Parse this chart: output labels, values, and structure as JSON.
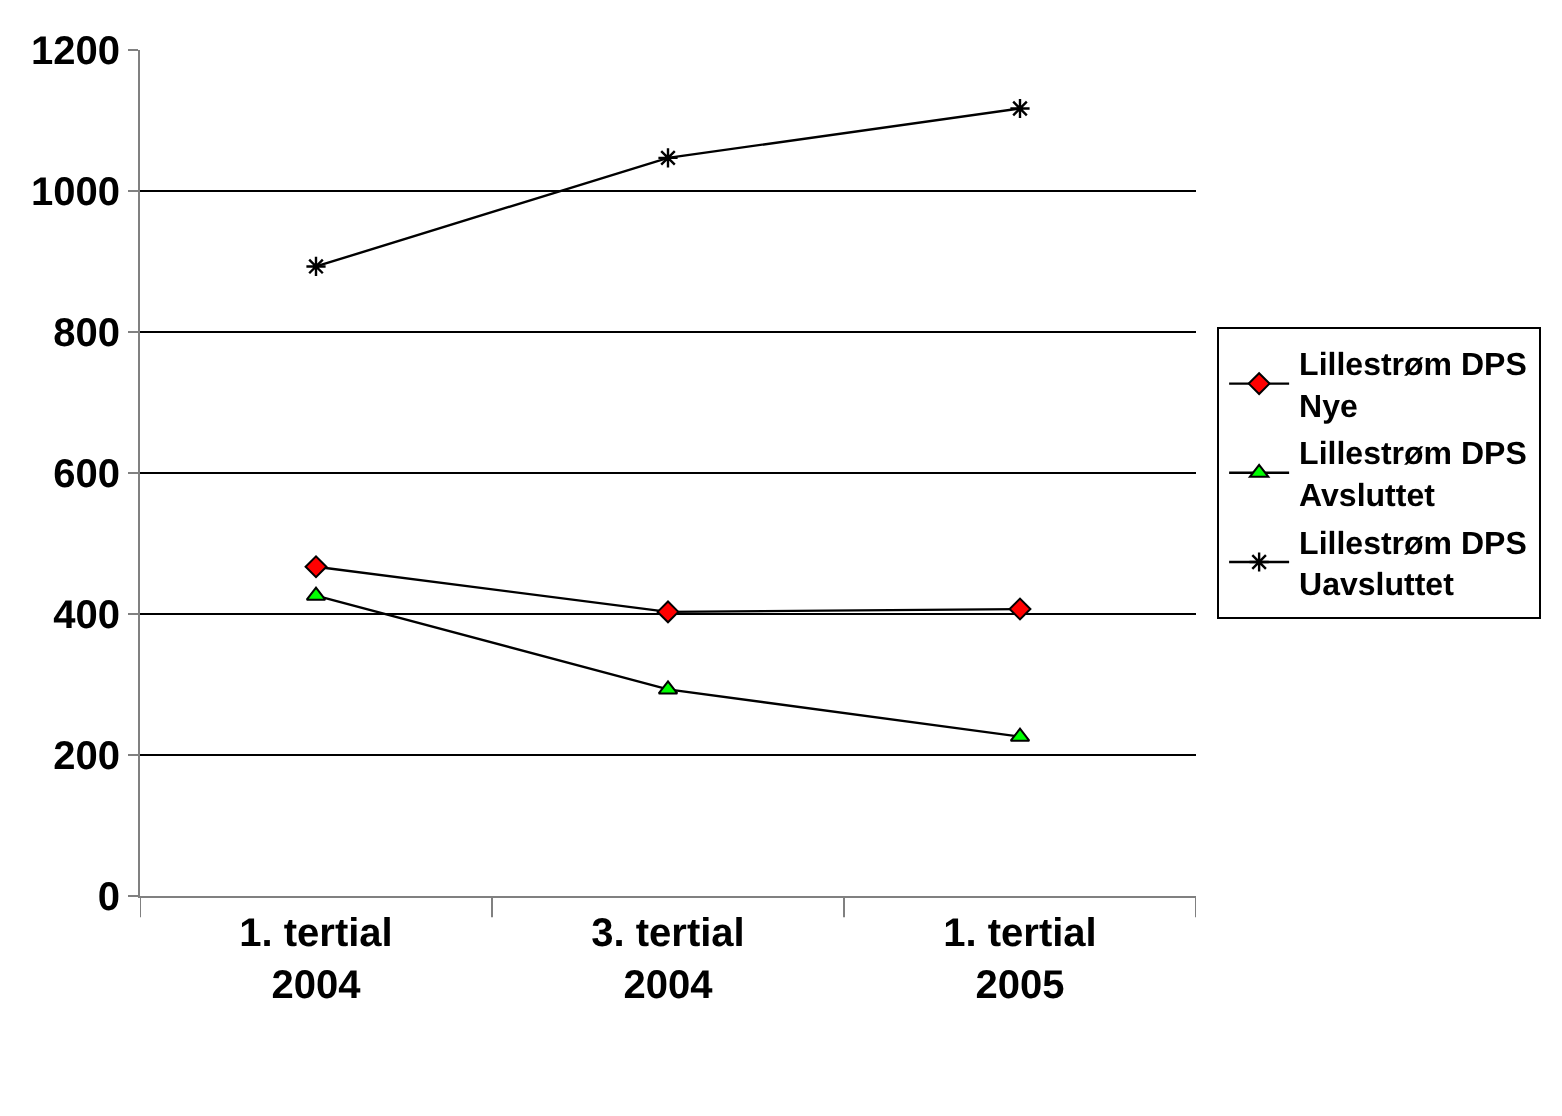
{
  "chart_data": {
    "type": "line",
    "categories": [
      "1. tertial 2004",
      "3. tertial 2004",
      "1. tertial 2005"
    ],
    "series": [
      {
        "name": "Lillestrøm DPS Nye",
        "color": "#ff0000",
        "marker": "diamond",
        "values": [
          467,
          403,
          407
        ]
      },
      {
        "name": "Lillestrøm DPS Avsluttet",
        "color": "#00ff00",
        "marker": "triangle",
        "values": [
          426,
          293,
          226
        ]
      },
      {
        "name": "Lillestrøm DPS Uavsluttet",
        "color": "#000000",
        "marker": "cross",
        "values": [
          893,
          1047,
          1117
        ]
      }
    ],
    "ylim": [
      0,
      1200
    ],
    "yticks": [
      0,
      200,
      400,
      600,
      800,
      1000,
      1200
    ],
    "grid": "y",
    "legend": "right",
    "line_style": "solid"
  }
}
